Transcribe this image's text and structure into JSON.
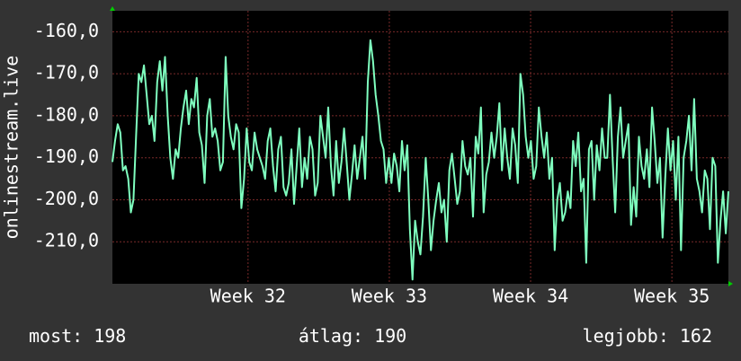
{
  "chart_data": {
    "type": "line",
    "y_label": "onlinestream.live",
    "ylim": [
      -220,
      -155
    ],
    "yticks": [
      {
        "value": -160,
        "label": "-160,0"
      },
      {
        "value": -170,
        "label": "-170,0"
      },
      {
        "value": -180,
        "label": "-180,0"
      },
      {
        "value": -190,
        "label": "-190,0"
      },
      {
        "value": -200,
        "label": "-200,0"
      },
      {
        "value": -210,
        "label": "-210,0"
      }
    ],
    "xlim": [
      31.04,
      35.4
    ],
    "xticks": [
      {
        "value": 32,
        "label": "Week 32"
      },
      {
        "value": 33,
        "label": "Week 33"
      },
      {
        "value": 34,
        "label": "Week 34"
      },
      {
        "value": 35,
        "label": "Week 35"
      }
    ],
    "grid": true,
    "series": [
      {
        "color": "#7fffbf",
        "values": [
          -191,
          -186,
          -182,
          -184,
          -193,
          -192,
          -195,
          -203,
          -200,
          -185,
          -170,
          -172,
          -168,
          -175,
          -182,
          -180,
          -186,
          -172,
          -167,
          -174,
          -166,
          -180,
          -190,
          -195,
          -188,
          -190,
          -183,
          -178,
          -174,
          -182,
          -176,
          -178,
          -171,
          -184,
          -187,
          -196,
          -180,
          -176,
          -185,
          -183,
          -186,
          -193,
          -191,
          -166,
          -180,
          -185,
          -188,
          -182,
          -184,
          -202,
          -195,
          -183,
          -191,
          -193,
          -184,
          -188,
          -190,
          -192,
          -195,
          -186,
          -183,
          -192,
          -198,
          -188,
          -185,
          -197,
          -199,
          -196,
          -188,
          -201,
          -192,
          -183,
          -197,
          -190,
          -195,
          -185,
          -188,
          -199,
          -196,
          -180,
          -185,
          -190,
          -178,
          -192,
          -199,
          -186,
          -196,
          -191,
          -183,
          -191,
          -200,
          -194,
          -187,
          -195,
          -190,
          -185,
          -195,
          -172,
          -162,
          -167,
          -175,
          -180,
          -186,
          -188,
          -196,
          -190,
          -196,
          -189,
          -192,
          -198,
          -186,
          -193,
          -187,
          -207,
          -219,
          -205,
          -210,
          -213,
          -204,
          -190,
          -200,
          -212,
          -205,
          -200,
          -196,
          -203,
          -200,
          -210,
          -193,
          -189,
          -195,
          -201,
          -198,
          -186,
          -192,
          -194,
          -190,
          -204,
          -185,
          -189,
          -178,
          -203,
          -194,
          -191,
          -184,
          -190,
          -185,
          -177,
          -193,
          -183,
          -190,
          -195,
          -183,
          -187,
          -196,
          -170,
          -175,
          -185,
          -190,
          -186,
          -195,
          -192,
          -178,
          -185,
          -190,
          -184,
          -195,
          -190,
          -212,
          -200,
          -196,
          -205,
          -203,
          -198,
          -202,
          -186,
          -192,
          -184,
          -198,
          -195,
          -215,
          -188,
          -186,
          -200,
          -187,
          -193,
          -183,
          -190,
          -190,
          -175,
          -190,
          -203,
          -185,
          -178,
          -190,
          -186,
          -182,
          -206,
          -197,
          -204,
          -185,
          -192,
          -195,
          -188,
          -197,
          -178,
          -186,
          -196,
          -190,
          -209,
          -195,
          -183,
          -193,
          -186,
          -200,
          -185,
          -212,
          -190,
          -186,
          -180,
          -193,
          -176,
          -195,
          -198,
          -203,
          -193,
          -195,
          -207,
          -190,
          -192,
          -215,
          -205,
          -198,
          -208,
          -198
        ]
      }
    ],
    "footer": [
      {
        "label": "most:",
        "value": 198
      },
      {
        "label": "átlag:",
        "value": 190
      },
      {
        "label": "legjobb:",
        "value": 162
      }
    ]
  }
}
